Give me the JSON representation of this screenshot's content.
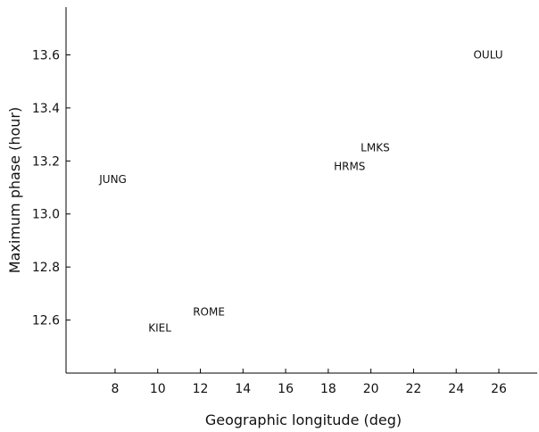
{
  "chart_data": {
    "type": "scatter",
    "xlabel": "Geographic longitude (deg)",
    "ylabel": "Maximum phase (hour)",
    "xlim": [
      5.7,
      27.8
    ],
    "ylim": [
      12.4,
      13.78
    ],
    "xticks": [
      8,
      10,
      12,
      14,
      16,
      18,
      20,
      22,
      24,
      26
    ],
    "yticks": [
      12.6,
      12.8,
      13.0,
      13.2,
      13.4,
      13.6
    ],
    "xtick_labels": [
      "8",
      "10",
      "12",
      "14",
      "16",
      "18",
      "20",
      "22",
      "24",
      "26"
    ],
    "ytick_labels": [
      "12.6",
      "12.8",
      "13.0",
      "13.2",
      "13.4",
      "13.6"
    ],
    "points": [
      {
        "label": "JUNG",
        "x": 7.9,
        "y": 13.13
      },
      {
        "label": "KIEL",
        "x": 10.1,
        "y": 12.57
      },
      {
        "label": "ROME",
        "x": 12.4,
        "y": 12.63
      },
      {
        "label": "HRMS",
        "x": 19.0,
        "y": 13.18
      },
      {
        "label": "LMKS",
        "x": 20.2,
        "y": 13.25
      },
      {
        "label": "OULU",
        "x": 25.5,
        "y": 13.6
      }
    ],
    "grid": false,
    "legend": "none"
  }
}
